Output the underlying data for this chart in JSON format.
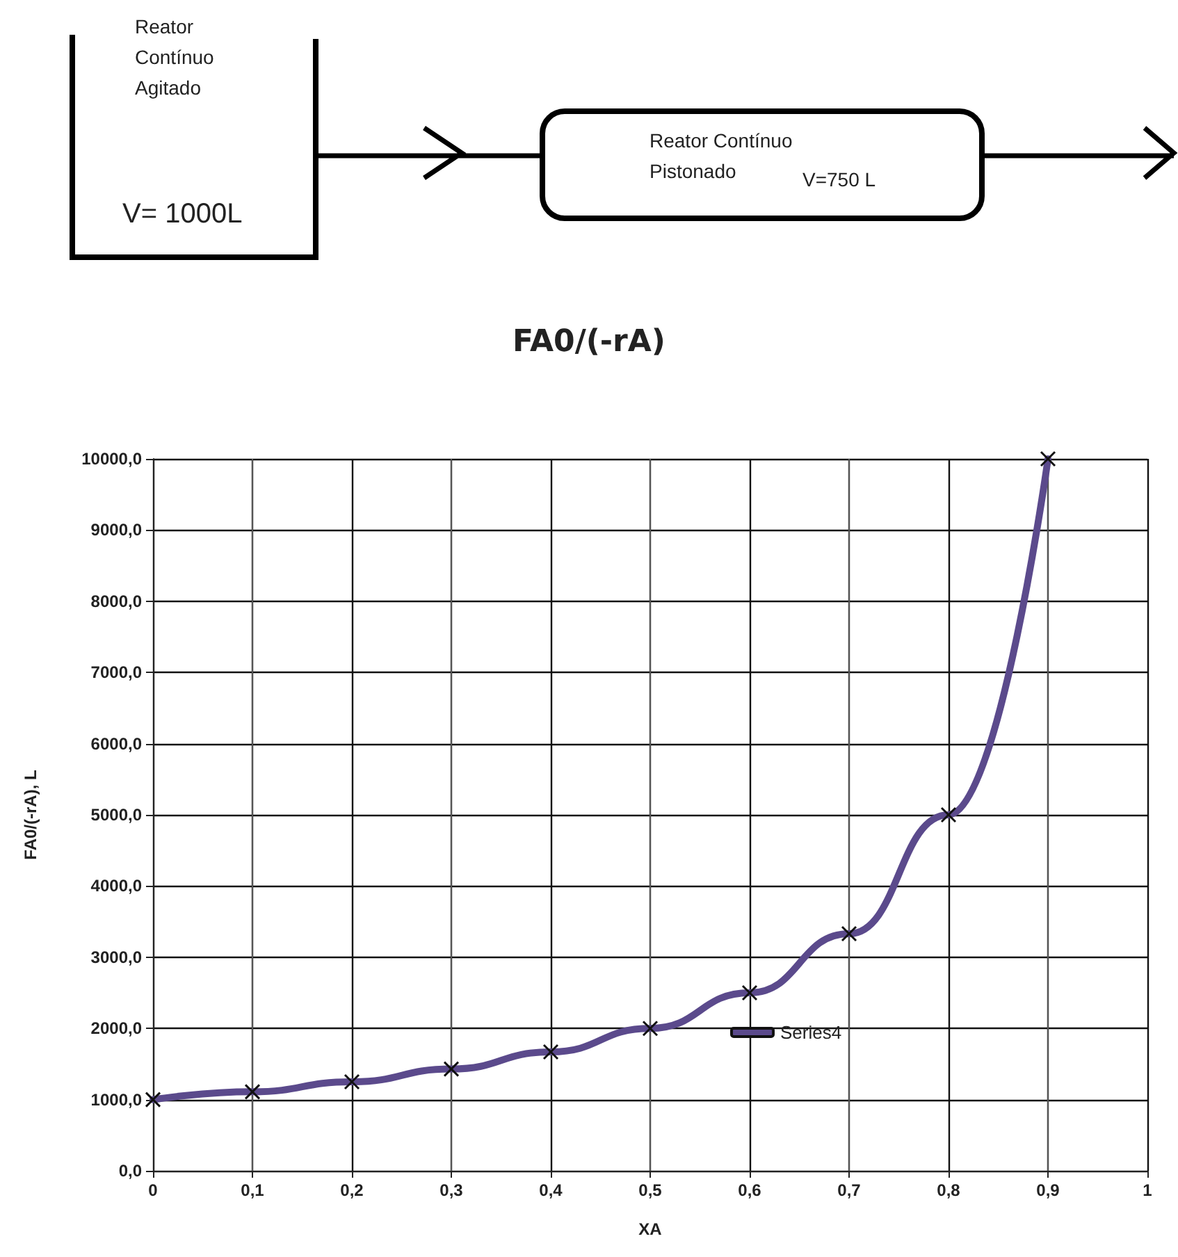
{
  "chart_data": {
    "type": "line",
    "title": "FA0/(-rA)",
    "xlabel": "XA",
    "ylabel": "FA0/(-rA), L",
    "annotations": [
      "Reator Contínuo Agitado",
      "V= 1000L",
      "Reator Contínuo Pistonado",
      "V=750 L"
    ],
    "x": [
      0,
      0.1,
      0.2,
      0.3,
      0.4,
      0.5,
      0.6,
      0.7,
      0.8,
      0.9
    ],
    "series": [
      {
        "name": "Series4",
        "color": "#5b4a8c",
        "values": [
          1000,
          1110,
          1250,
          1430,
          1670,
          2000,
          2500,
          3330,
          5000,
          10000
        ]
      }
    ],
    "xlim": [
      0,
      1
    ],
    "xticks": [
      0,
      {
        "value": 0.1,
        "label": "0,1"
      },
      {
        "value": 0.2,
        "label": "0,2"
      },
      {
        "value": 0.3,
        "label": "0,3"
      },
      {
        "value": 0.4,
        "label": "0,4"
      },
      {
        "value": 0.5,
        "label": "0,5"
      },
      {
        "value": 0.6,
        "label": "0,6"
      },
      {
        "value": 0.7,
        "label": "0,7"
      },
      {
        "value": 0.8,
        "label": "0,8"
      },
      {
        "value": 0.9,
        "label": "0,9"
      },
      1
    ],
    "ylim": [
      0,
      10000
    ],
    "yticks": [
      {
        "value": 0,
        "label": "0,0"
      },
      {
        "value": 1000,
        "label": "1000,0"
      },
      {
        "value": 2000,
        "label": "2000,0"
      },
      {
        "value": 3000,
        "label": "3000,0"
      },
      {
        "value": 4000,
        "label": "4000,0"
      },
      {
        "value": 5000,
        "label": "5000,0"
      },
      {
        "value": 6000,
        "label": "6000,0"
      },
      {
        "value": 7000,
        "label": "7000,0"
      },
      {
        "value": 8000,
        "label": "8000,0"
      },
      {
        "value": 9000,
        "label": "9000,0"
      },
      {
        "value": 10000,
        "label": "10000,0"
      }
    ],
    "grid": true,
    "legend": "bottom",
    "marker": "cross",
    "line_style": "solid"
  }
}
